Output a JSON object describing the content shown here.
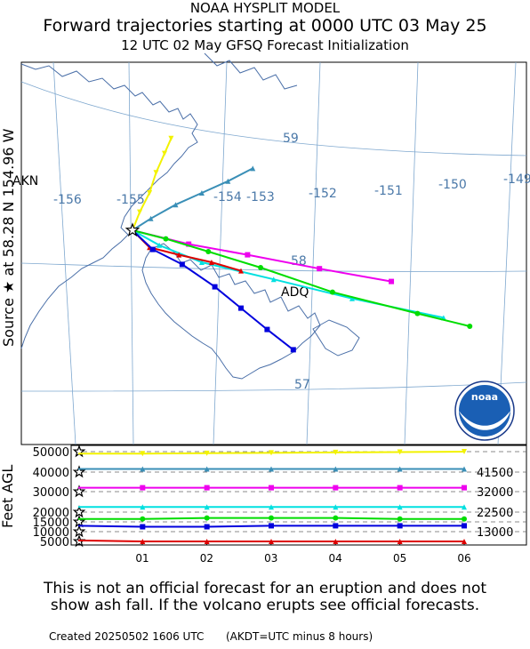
{
  "header": {
    "line1": "NOAA HYSPLIT MODEL",
    "line2": "Forward trajectories starting at 0000 UTC 03 May 25",
    "line3": "12 UTC 02 May    GFSQ  Forecast Initialization"
  },
  "map": {
    "source_label": "Source ★  at    58.28 N  154.96 W",
    "lon_labels": [
      "-156",
      "-155",
      "-154",
      "-153",
      "-152",
      "-151",
      "-150",
      "-149"
    ],
    "lat_labels": [
      "59",
      "58",
      "57"
    ],
    "place_labels": [
      "AKN",
      "ADQ"
    ]
  },
  "chart_data": [
    {
      "type": "line",
      "title": "Forward trajectories starting at 0000 UTC 03 May 25",
      "description_units": "map trajectories (lon, lat) from source",
      "source": {
        "lat": 58.28,
        "lon": -154.96
      },
      "series": [
        {
          "color": "#f2f200",
          "marker": "triangle-down",
          "points": [
            [
              -154.96,
              58.28
            ],
            [
              -154.85,
              58.45
            ],
            [
              -154.7,
              58.63
            ],
            [
              -154.6,
              58.82
            ],
            [
              -154.47,
              59.0
            ],
            [
              -154.37,
              59.14
            ]
          ]
        },
        {
          "color": "#3a8fb7",
          "marker": "triangle",
          "points": [
            [
              -154.96,
              58.28
            ],
            [
              -154.68,
              58.39
            ],
            [
              -154.3,
              58.52
            ],
            [
              -153.9,
              58.63
            ],
            [
              -153.5,
              58.74
            ],
            [
              -153.12,
              58.86
            ]
          ]
        },
        {
          "color": "#ee00ee",
          "marker": "square",
          "points": [
            [
              -154.96,
              58.28
            ],
            [
              -154.1,
              58.15
            ],
            [
              -153.2,
              58.05
            ],
            [
              -152.1,
              57.92
            ],
            [
              -151.0,
              57.8
            ]
          ]
        },
        {
          "color": "#00e0e0",
          "marker": "triangle",
          "points": [
            [
              -154.96,
              58.28
            ],
            [
              -154.55,
              58.14
            ],
            [
              -153.9,
              57.98
            ],
            [
              -152.8,
              57.82
            ],
            [
              -151.6,
              57.64
            ],
            [
              -150.2,
              57.46
            ]
          ]
        },
        {
          "color": "#00dd00",
          "marker": "circle",
          "points": [
            [
              -154.96,
              58.28
            ],
            [
              -154.45,
              58.2
            ],
            [
              -153.8,
              58.08
            ],
            [
              -153.0,
              57.93
            ],
            [
              -151.9,
              57.7
            ],
            [
              -150.6,
              57.5
            ],
            [
              -149.8,
              57.38
            ]
          ]
        },
        {
          "color": "#dd0000",
          "marker": "triangle",
          "points": [
            [
              -154.96,
              58.28
            ],
            [
              -154.7,
              58.12
            ],
            [
              -154.25,
              58.05
            ],
            [
              -153.75,
              57.98
            ],
            [
              -153.3,
              57.9
            ]
          ]
        },
        {
          "color": "#0000dd",
          "marker": "square",
          "points": [
            [
              -154.96,
              58.28
            ],
            [
              -154.65,
              58.1
            ],
            [
              -154.2,
              57.96
            ],
            [
              -153.7,
              57.75
            ],
            [
              -153.3,
              57.55
            ],
            [
              -152.9,
              57.35
            ],
            [
              -152.5,
              57.16
            ]
          ]
        }
      ]
    },
    {
      "type": "line",
      "ylabel": "Feet AGL",
      "xlabel": "",
      "x_ticks": [
        "01",
        "02",
        "03",
        "04",
        "05",
        "06"
      ],
      "y_tick_labels": [
        "50000",
        "40000",
        "30000",
        "20000",
        "15000",
        "10000",
        "5000"
      ],
      "right_labels": [
        "41500",
        "32000",
        "22500",
        "13000"
      ],
      "series": [
        {
          "color": "#f2f200",
          "marker": "triangle-down",
          "values": [
            49000,
            49000,
            49200,
            49400,
            49600,
            49800,
            50000
          ]
        },
        {
          "color": "#3a8fb7",
          "marker": "triangle",
          "values": [
            41500,
            41500,
            41500,
            41500,
            41500,
            41500,
            41500
          ]
        },
        {
          "color": "#ee00ee",
          "marker": "square",
          "values": [
            32000,
            32000,
            32000,
            32000,
            32000,
            32000,
            32000
          ]
        },
        {
          "color": "#00e0e0",
          "marker": "triangle",
          "values": [
            22500,
            22500,
            22500,
            22500,
            22500,
            22500,
            22500
          ]
        },
        {
          "color": "#00dd00",
          "marker": "circle",
          "values": [
            16500,
            16500,
            17000,
            17000,
            17000,
            16500,
            16500
          ]
        },
        {
          "color": "#0000dd",
          "marker": "square",
          "values": [
            13000,
            12500,
            12500,
            13000,
            13000,
            13000,
            13000
          ]
        },
        {
          "color": "#dd0000",
          "marker": "triangle",
          "values": [
            5500,
            5000,
            4800,
            4600,
            4600,
            4600,
            4500
          ]
        }
      ]
    }
  ],
  "footer": {
    "line1": "This is not an official forecast for an eruption and does not",
    "line2": "show ash fall. If the volcano erupts see official forecasts.",
    "created": "Created 20250502 1606 UTC",
    "akdt": "(AKDT=UTC minus 8 hours)"
  },
  "logo": {
    "text": "noaa"
  }
}
